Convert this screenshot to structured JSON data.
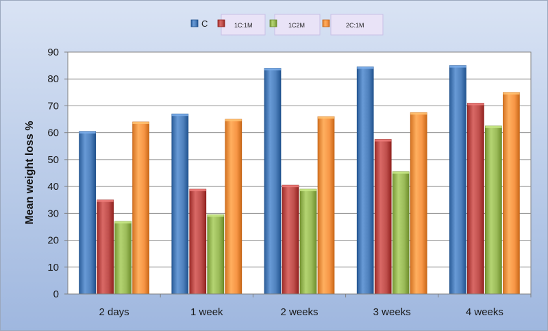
{
  "chart_data": {
    "type": "bar",
    "title": "",
    "xlabel": "",
    "ylabel": "Mean weight loss %",
    "ylim": [
      0,
      90
    ],
    "yticks": [
      0,
      10,
      20,
      30,
      40,
      50,
      60,
      70,
      80,
      90
    ],
    "grid": true,
    "legend_position": "top",
    "categories": [
      "2 days",
      "1 week",
      "2 weeks",
      "3 weeks",
      "4 weeks"
    ],
    "series": [
      {
        "name": "C",
        "color": "#4f81bd",
        "values": [
          60.5,
          67,
          84,
          84.5,
          85
        ]
      },
      {
        "name": "1C:1M",
        "color": "#c0504d",
        "values": [
          35,
          39,
          40.5,
          57.5,
          71
        ]
      },
      {
        "name": "1C2M",
        "color": "#9bbb59",
        "values": [
          27,
          29.5,
          39,
          45.5,
          62.5
        ]
      },
      {
        "name": "2C:1M",
        "color": "#f79646",
        "values": [
          64,
          65,
          66,
          67.5,
          75
        ]
      }
    ]
  }
}
